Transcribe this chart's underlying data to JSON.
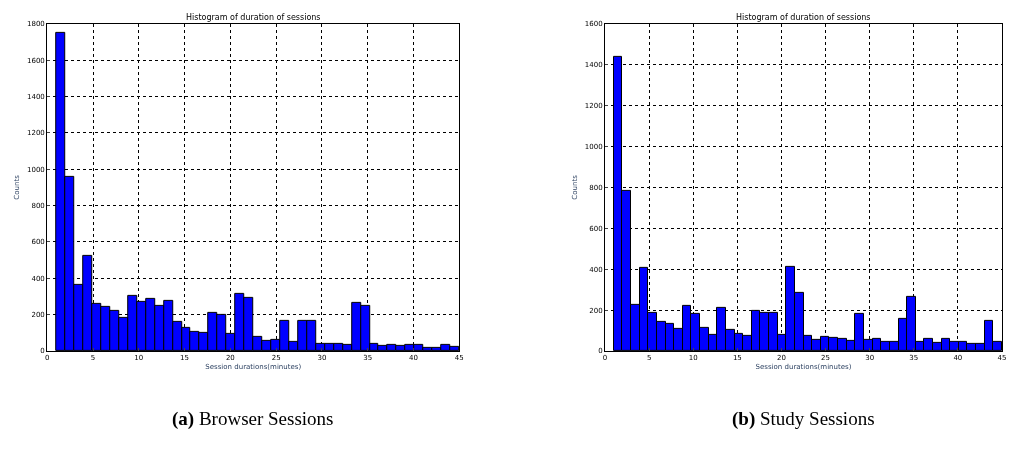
{
  "chart_data": [
    {
      "type": "histogram",
      "title": "Histogram of duration of sessions",
      "xlabel": "Session durations(minutes)",
      "ylabel": "Counts",
      "color": "#0000ff",
      "grid": true,
      "bins": [
        1,
        1.98,
        2.96,
        3.93,
        4.91,
        5.89,
        6.87,
        7.84,
        8.82,
        9.8,
        10.78,
        11.76,
        12.73,
        13.71,
        14.69,
        15.67,
        16.64,
        17.62,
        18.6,
        19.58,
        20.56,
        21.53,
        22.51,
        23.49,
        24.47,
        25.44,
        26.42,
        27.4,
        28.38,
        29.36,
        30.33,
        31.31,
        32.29,
        33.27,
        34.24,
        35.22,
        36.2,
        37.18,
        38.16,
        39.13,
        40.11,
        41.09,
        42.07,
        43.04,
        44.02,
        45
      ],
      "values": [
        1750,
        960,
        365,
        525,
        260,
        243,
        220,
        183,
        305,
        268,
        288,
        248,
        275,
        160,
        125,
        103,
        101,
        210,
        200,
        93,
        312,
        292,
        76,
        58,
        61,
        168,
        49,
        168,
        164,
        41,
        40,
        40,
        34,
        263,
        247,
        41,
        29,
        31,
        27,
        31,
        34,
        18,
        18,
        31,
        23
      ],
      "xlim": [
        0,
        45
      ],
      "ylim": [
        0,
        1800
      ],
      "xticks": [
        0,
        5,
        10,
        15,
        20,
        25,
        30,
        35,
        40,
        45
      ],
      "yticks": [
        0,
        200,
        400,
        600,
        800,
        1000,
        1200,
        1400,
        1600,
        1800
      ],
      "annotations": [
        "(a) Browser Sessions"
      ]
    },
    {
      "type": "histogram",
      "title": "Histogram of duration of sessions",
      "xlabel": "Session durations(minutes)",
      "ylabel": "Counts",
      "color": "#0000ff",
      "grid": true,
      "bins": [
        1,
        1.98,
        2.96,
        3.93,
        4.91,
        5.89,
        6.87,
        7.84,
        8.82,
        9.8,
        10.78,
        11.76,
        12.73,
        13.71,
        14.69,
        15.67,
        16.64,
        17.62,
        18.6,
        19.58,
        20.56,
        21.53,
        22.51,
        23.49,
        24.47,
        25.44,
        26.42,
        27.4,
        28.38,
        29.36,
        30.33,
        31.31,
        32.29,
        33.27,
        34.24,
        35.22,
        36.2,
        37.18,
        38.16,
        39.13,
        40.11,
        41.09,
        42.07,
        43.04,
        44.02,
        45
      ],
      "values": [
        1440,
        785,
        224,
        405,
        184,
        142,
        133,
        106,
        220,
        183,
        112,
        78,
        213,
        103,
        85,
        75,
        195,
        188,
        188,
        80,
        411,
        285,
        75,
        53,
        67,
        64,
        59,
        51,
        179,
        54,
        58,
        46,
        46,
        158,
        264,
        46,
        61,
        40,
        58,
        43,
        42,
        34,
        35,
        147,
        42
      ],
      "xlim": [
        0,
        45
      ],
      "ylim": [
        0,
        1600
      ],
      "xticks": [
        0,
        5,
        10,
        15,
        20,
        25,
        30,
        35,
        40,
        45
      ],
      "yticks": [
        0,
        200,
        400,
        600,
        800,
        1000,
        1200,
        1400,
        1600
      ],
      "annotations": [
        "(b) Study Sessions"
      ]
    }
  ]
}
